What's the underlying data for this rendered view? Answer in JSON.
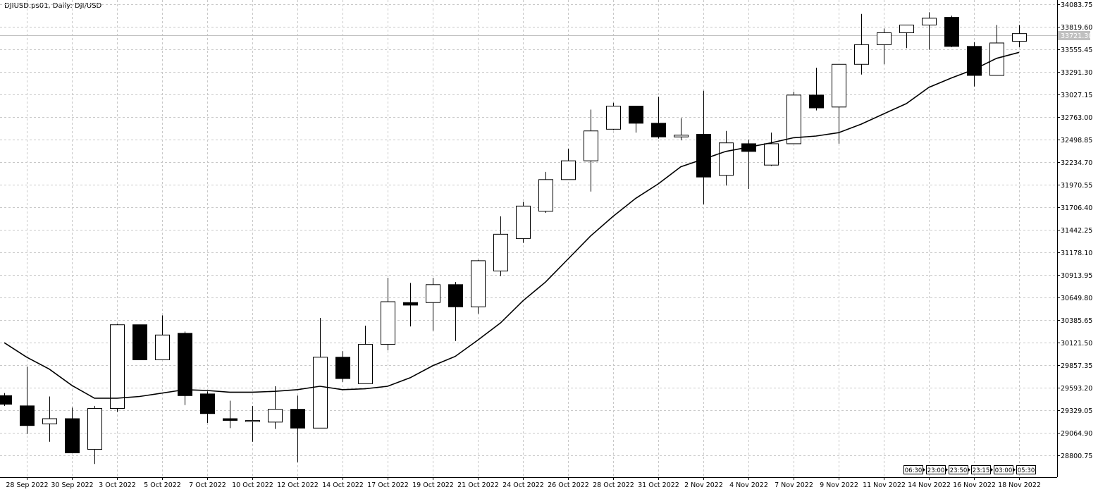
{
  "window": {
    "title": "DJIUSD.ps01, Daily:  DJI/USD"
  },
  "colors": {
    "background": "#ffffff",
    "grid": "#c8c8c8",
    "candle": "#000000",
    "bull_fill": "#ffffff",
    "bear_fill": "#000000",
    "ma": "#000000",
    "price_line": "#c0c0c0"
  },
  "countdown_timers": [
    "06:30",
    "23:00",
    "23:50",
    "23:15",
    "03:00",
    "05:30"
  ],
  "chart_data": {
    "type": "candlestick",
    "title": "DJIUSD.ps01, Daily:  DJI/USD",
    "symbol": "DJIUSD.ps01",
    "timeframe": "Daily",
    "current_price": 33721.3,
    "ylim": [
      28668,
      34120
    ],
    "grid": true,
    "y_ticks": [
      34083.75,
      33819.6,
      33555.45,
      33291.3,
      33027.15,
      32763.0,
      32498.85,
      32234.7,
      31970.55,
      31706.4,
      31442.25,
      31178.1,
      30913.95,
      30649.8,
      30385.65,
      30121.5,
      29857.35,
      29593.2,
      29329.05,
      29064.9,
      28800.75
    ],
    "x_tick_labels": [
      "28 Sep 2022",
      "30 Sep 2022",
      "3 Oct 2022",
      "5 Oct 2022",
      "7 Oct 2022",
      "10 Oct 2022",
      "12 Oct 2022",
      "14 Oct 2022",
      "17 Oct 2022",
      "19 Oct 2022",
      "21 Oct 2022",
      "24 Oct 2022",
      "26 Oct 2022",
      "28 Oct 2022",
      "31 Oct 2022",
      "2 Nov 2022",
      "4 Nov 2022",
      "7 Nov 2022",
      "9 Nov 2022",
      "11 Nov 2022",
      "14 Nov 2022",
      "16 Nov 2022",
      "18 Nov 2022"
    ],
    "series": [
      {
        "type": "candlestick",
        "candles": [
          {
            "o": 29500,
            "h": 29530,
            "l": 29380,
            "c": 29400
          },
          {
            "o": 29380,
            "h": 29840,
            "l": 29050,
            "c": 29150
          },
          {
            "o": 29170,
            "h": 29490,
            "l": 28960,
            "c": 29230
          },
          {
            "o": 29230,
            "h": 29360,
            "l": 28850,
            "c": 28830
          },
          {
            "o": 28870,
            "h": 29380,
            "l": 28700,
            "c": 29350
          },
          {
            "o": 29350,
            "h": 30340,
            "l": 29310,
            "c": 30330
          },
          {
            "o": 30330,
            "h": 30330,
            "l": 29920,
            "c": 29920
          },
          {
            "o": 29920,
            "h": 30440,
            "l": 29920,
            "c": 30210
          },
          {
            "o": 30230,
            "h": 30250,
            "l": 29390,
            "c": 29500
          },
          {
            "o": 29520,
            "h": 29550,
            "l": 29180,
            "c": 29290
          },
          {
            "o": 29230,
            "h": 29440,
            "l": 29120,
            "c": 29210
          },
          {
            "o": 29210,
            "h": 29380,
            "l": 28960,
            "c": 29210
          },
          {
            "o": 29190,
            "h": 29610,
            "l": 29110,
            "c": 29340
          },
          {
            "o": 29340,
            "h": 29500,
            "l": 28720,
            "c": 29120
          },
          {
            "o": 29120,
            "h": 30410,
            "l": 29120,
            "c": 29950
          },
          {
            "o": 29950,
            "h": 30020,
            "l": 29660,
            "c": 29700
          },
          {
            "o": 29640,
            "h": 30320,
            "l": 29640,
            "c": 30100
          },
          {
            "o": 30100,
            "h": 30880,
            "l": 30030,
            "c": 30600
          },
          {
            "o": 30590,
            "h": 30820,
            "l": 30310,
            "c": 30560
          },
          {
            "o": 30590,
            "h": 30880,
            "l": 30260,
            "c": 30800
          },
          {
            "o": 30800,
            "h": 30830,
            "l": 30140,
            "c": 30540
          },
          {
            "o": 30540,
            "h": 31090,
            "l": 30460,
            "c": 31080
          },
          {
            "o": 30960,
            "h": 31600,
            "l": 30900,
            "c": 31390
          },
          {
            "o": 31340,
            "h": 31770,
            "l": 31290,
            "c": 31720
          },
          {
            "o": 31660,
            "h": 32120,
            "l": 31640,
            "c": 32030
          },
          {
            "o": 32030,
            "h": 32390,
            "l": 32030,
            "c": 32250
          },
          {
            "o": 32250,
            "h": 32850,
            "l": 31890,
            "c": 32600
          },
          {
            "o": 32620,
            "h": 32930,
            "l": 32610,
            "c": 32890
          },
          {
            "o": 32890,
            "h": 32890,
            "l": 32580,
            "c": 32690
          },
          {
            "o": 32690,
            "h": 33000,
            "l": 32510,
            "c": 32530
          },
          {
            "o": 32530,
            "h": 32750,
            "l": 32490,
            "c": 32550
          },
          {
            "o": 32560,
            "h": 33070,
            "l": 31740,
            "c": 32060
          },
          {
            "o": 32080,
            "h": 32600,
            "l": 31960,
            "c": 32460
          },
          {
            "o": 32450,
            "h": 32500,
            "l": 31920,
            "c": 32360
          },
          {
            "o": 32200,
            "h": 32580,
            "l": 32190,
            "c": 32450
          },
          {
            "o": 32450,
            "h": 33060,
            "l": 32450,
            "c": 33020
          },
          {
            "o": 33020,
            "h": 33340,
            "l": 32840,
            "c": 32870
          },
          {
            "o": 32880,
            "h": 33380,
            "l": 32450,
            "c": 33380
          },
          {
            "o": 33380,
            "h": 33970,
            "l": 33260,
            "c": 33610
          },
          {
            "o": 33610,
            "h": 33800,
            "l": 33380,
            "c": 33750
          },
          {
            "o": 33750,
            "h": 33820,
            "l": 33570,
            "c": 33840
          },
          {
            "o": 33840,
            "h": 33990,
            "l": 33550,
            "c": 33920
          },
          {
            "o": 33930,
            "h": 33950,
            "l": 33580,
            "c": 33590
          },
          {
            "o": 33590,
            "h": 33640,
            "l": 33120,
            "c": 33250
          },
          {
            "o": 33250,
            "h": 33840,
            "l": 33250,
            "c": 33630
          },
          {
            "o": 33650,
            "h": 33840,
            "l": 33580,
            "c": 33740
          }
        ]
      },
      {
        "type": "line",
        "values": [
          30120,
          29950,
          29810,
          29620,
          29470,
          29470,
          29490,
          29530,
          29570,
          29560,
          29540,
          29540,
          29550,
          29570,
          29610,
          29570,
          29580,
          29610,
          29710,
          29850,
          29960,
          30150,
          30350,
          30610,
          30830,
          31100,
          31370,
          31600,
          31810,
          31980,
          32180,
          32270,
          32360,
          32410,
          32460,
          32520,
          32540,
          32580,
          32680,
          32800,
          32920,
          33110,
          33220,
          33320,
          33450,
          33520
        ]
      }
    ]
  }
}
